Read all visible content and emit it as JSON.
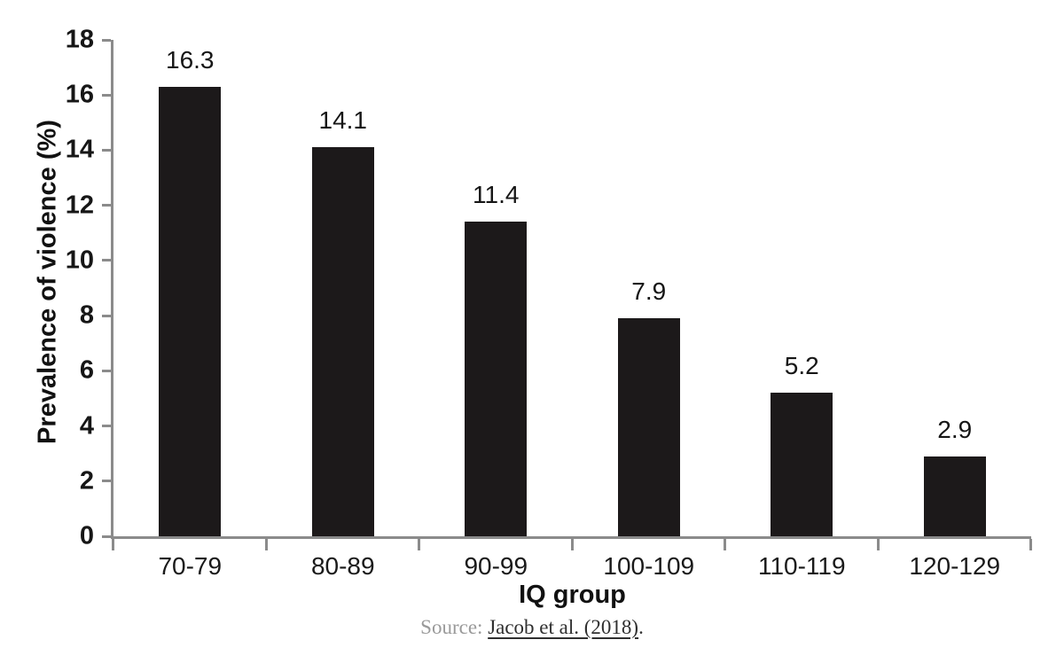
{
  "figure": {
    "source_prefix": "Source: ",
    "source_link": "Jacob et al. (2018)",
    "source_suffix": "."
  },
  "chart_data": {
    "type": "bar",
    "title": "",
    "categories": [
      "70-79",
      "80-89",
      "90-99",
      "100-109",
      "110-119",
      "120-129"
    ],
    "values": [
      16.3,
      14.1,
      11.4,
      7.9,
      5.2,
      2.9
    ],
    "value_labels": [
      "16.3",
      "14.1",
      "11.4",
      "7.9",
      "5.2",
      "2.9"
    ],
    "xlabel": "IQ group",
    "ylabel": "Prevalence of violence (%)",
    "ylim": [
      0,
      18
    ],
    "yticks": [
      0,
      2,
      4,
      6,
      8,
      10,
      12,
      14,
      16,
      18
    ],
    "grid": false,
    "legend": "none",
    "bar_color": "#1c191a",
    "axis_color": "#8b8b8b",
    "text_color": "#161616",
    "source_gray": "#9a9a9a",
    "link_color": "#2f2f2f",
    "background": "#ffffff"
  }
}
